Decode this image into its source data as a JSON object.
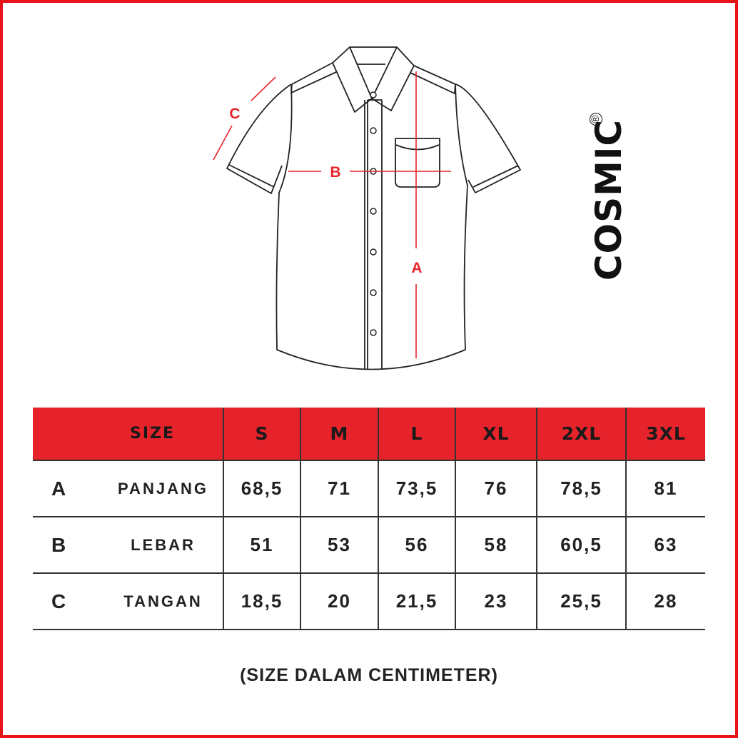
{
  "brand": {
    "name": "COSMIC",
    "registered": "®"
  },
  "diagram": {
    "labels": {
      "a": "A",
      "b": "B",
      "c": "C"
    },
    "accent_color": "#e6232a"
  },
  "table": {
    "header": [
      "SIZE",
      "S",
      "M",
      "L",
      "XL",
      "2XL",
      "3XL"
    ],
    "rows": [
      {
        "letter": "A",
        "name": "PANJANG",
        "values": [
          "68,5",
          "71",
          "73,5",
          "76",
          "78,5",
          "81"
        ]
      },
      {
        "letter": "B",
        "name": "LEBAR",
        "values": [
          "51",
          "53",
          "56",
          "58",
          "60,5",
          "63"
        ]
      },
      {
        "letter": "C",
        "name": "TANGAN",
        "values": [
          "18,5",
          "20",
          "21,5",
          "23",
          "25,5",
          "28"
        ]
      }
    ]
  },
  "note": "(SIZE DALAM CENTIMETER)"
}
